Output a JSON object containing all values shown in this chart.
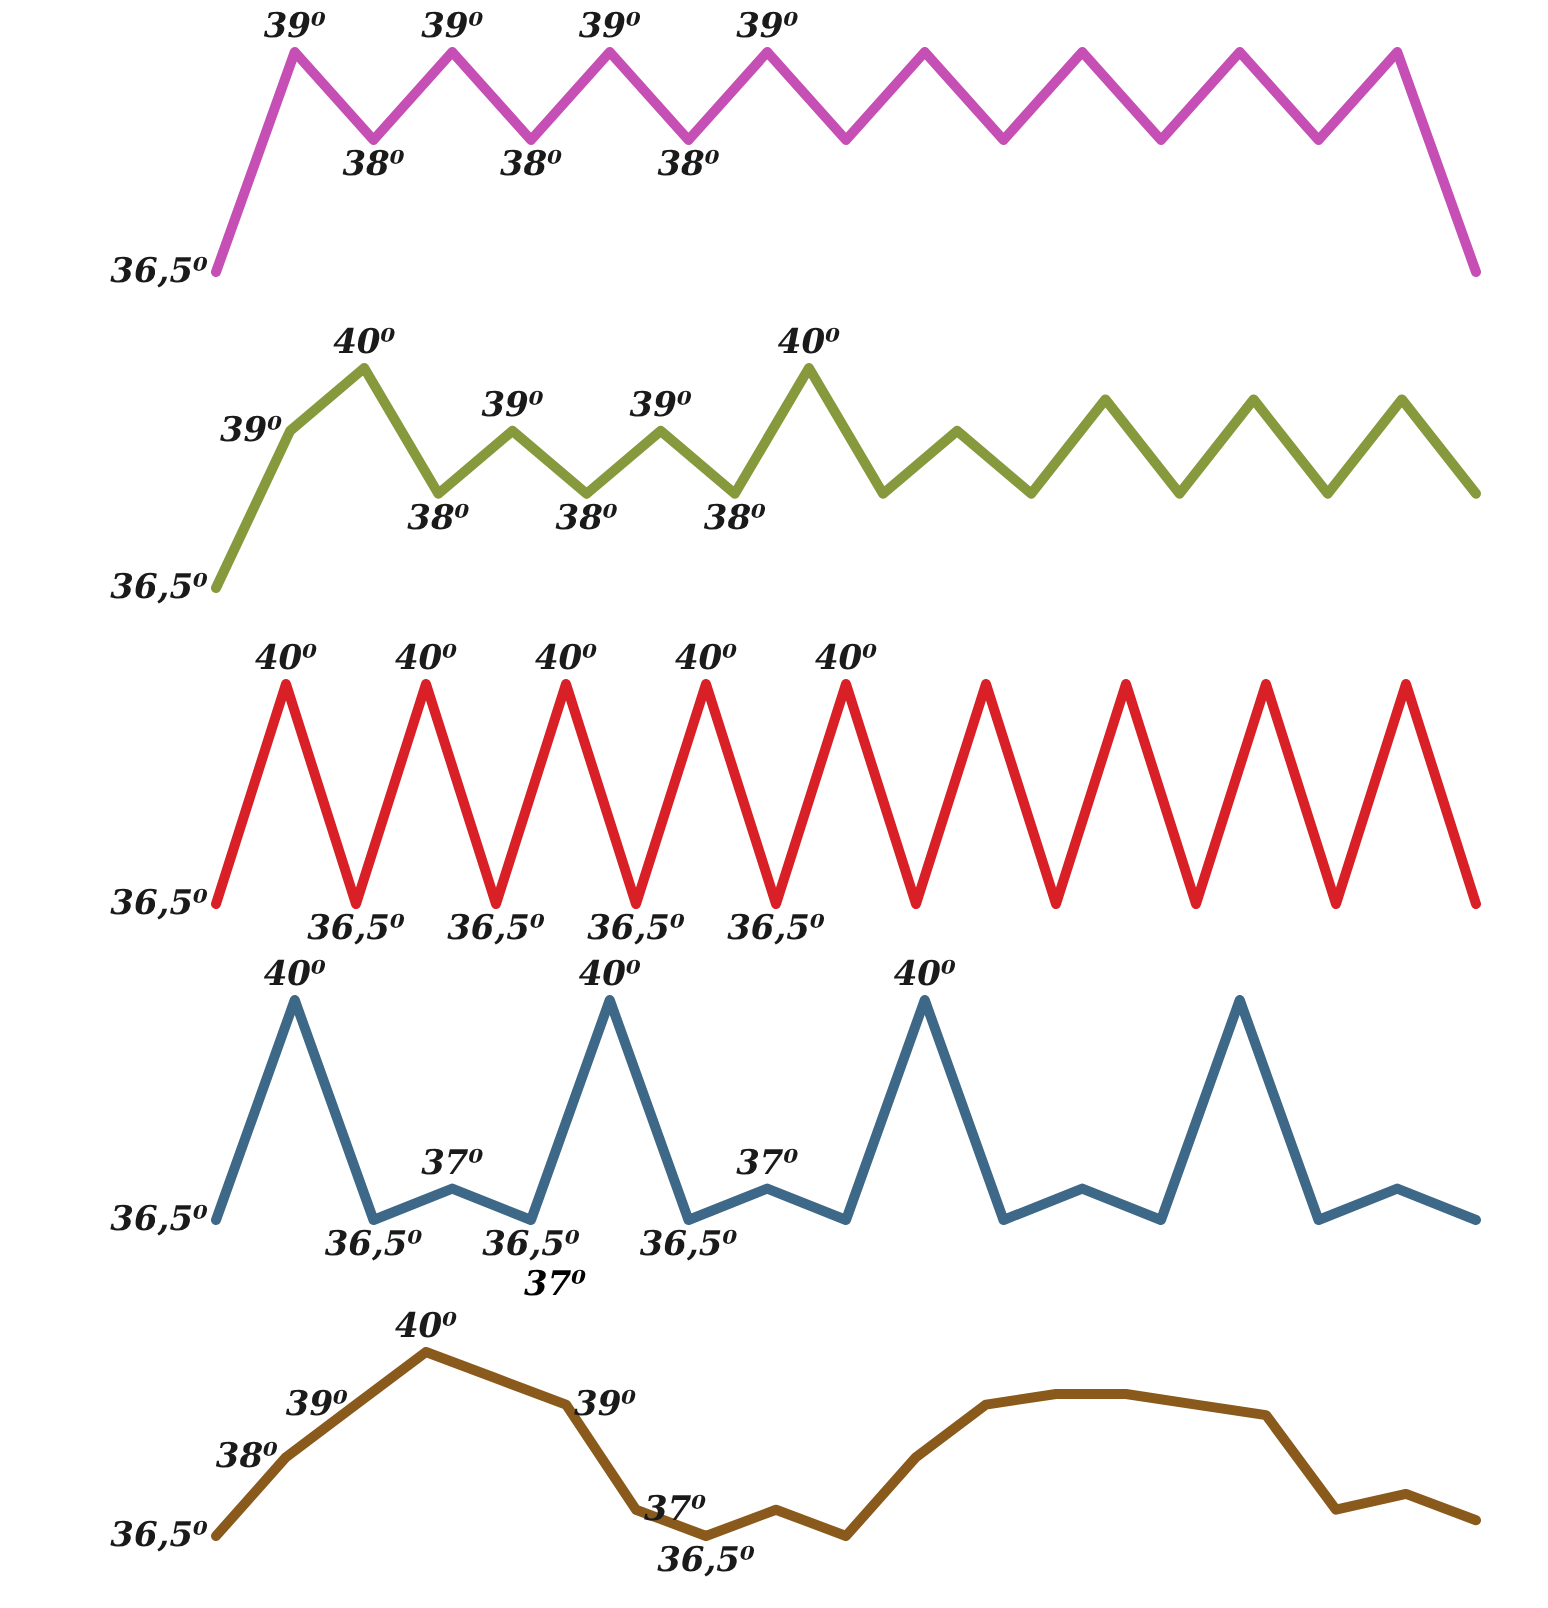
{
  "chart_data": [
    {
      "type": "line",
      "categories": [
        null,
        null,
        null,
        null,
        null,
        null,
        null,
        null,
        null,
        null,
        null,
        null,
        null,
        null,
        null,
        null,
        null
      ],
      "tick_labels": false,
      "marker": "none",
      "line_style": "solid",
      "series": [
        {
          "color": "#c64fb5",
          "values": [
            36.5,
            39,
            38,
            39,
            38,
            39,
            38,
            39,
            38,
            39,
            38,
            39,
            38,
            39,
            38,
            39,
            36.5
          ],
          "value_labels": [
            "36,5⁰",
            "39⁰",
            "38⁰",
            "39⁰",
            "38⁰",
            "39⁰",
            "38⁰",
            "39⁰",
            null,
            null,
            null,
            null,
            null,
            null,
            null,
            null,
            null
          ]
        }
      ]
    },
    {
      "type": "line",
      "categories": [
        null,
        null,
        null,
        null,
        null,
        null,
        null,
        null,
        null,
        null,
        null,
        null,
        null,
        null,
        null,
        null,
        null,
        null
      ],
      "tick_labels": false,
      "marker": "none",
      "line_style": "solid",
      "series": [
        {
          "color": "#86993c",
          "values": [
            36.5,
            39,
            40,
            38,
            39,
            38,
            39,
            38,
            40,
            38,
            39,
            38,
            39.5,
            38,
            39.5,
            38,
            39.5,
            38
          ],
          "value_labels": [
            "36,5⁰",
            "39⁰",
            "40⁰",
            "38⁰",
            "39⁰",
            "38⁰",
            "39⁰",
            "38⁰",
            "40⁰",
            null,
            null,
            null,
            null,
            null,
            null,
            null,
            null,
            null
          ]
        }
      ]
    },
    {
      "type": "line",
      "categories": [
        null,
        null,
        null,
        null,
        null,
        null,
        null,
        null,
        null,
        null,
        null,
        null,
        null,
        null,
        null,
        null,
        null,
        null,
        null
      ],
      "tick_labels": false,
      "marker": "none",
      "line_style": "solid",
      "series": [
        {
          "color": "#d92027",
          "values": [
            36.5,
            40,
            36.5,
            40,
            36.5,
            40,
            36.5,
            40,
            36.5,
            40,
            36.5,
            40,
            36.5,
            40,
            36.5,
            40,
            36.5,
            40,
            36.5
          ],
          "value_labels": [
            "36,5⁰",
            "40⁰",
            "36,5⁰",
            "40⁰",
            "36,5⁰",
            "40⁰",
            "36,5⁰",
            "40⁰",
            "36,5⁰",
            "40⁰",
            null,
            null,
            null,
            null,
            null,
            null,
            null,
            null,
            null
          ]
        }
      ]
    },
    {
      "type": "line",
      "categories": [
        null,
        null,
        null,
        null,
        null,
        null,
        null,
        null,
        null,
        null,
        null,
        null,
        null,
        null,
        null,
        null,
        null
      ],
      "tick_labels": false,
      "marker": "none",
      "line_style": "solid",
      "series": [
        {
          "color": "#3e6888",
          "values": [
            36.5,
            40,
            36.5,
            37,
            36.5,
            40,
            36.5,
            37,
            36.5,
            40,
            36.5,
            37,
            36.5,
            40,
            36.5,
            37,
            36.5
          ],
          "value_labels": [
            "36,5⁰",
            "40⁰",
            "36,5⁰",
            "37⁰",
            "36,5⁰",
            "40⁰",
            "36,5⁰",
            "37⁰",
            null,
            "40⁰",
            null,
            null,
            null,
            null,
            null,
            null,
            null
          ]
        }
      ]
    },
    {
      "type": "line",
      "categories": [
        null,
        null,
        null,
        null,
        null,
        null,
        null,
        null,
        null,
        null,
        null,
        null,
        null,
        null,
        null,
        null,
        null,
        null,
        null
      ],
      "tick_labels": false,
      "marker": "none",
      "line_style": "solid",
      "annotations": [
        "37⁰"
      ],
      "series": [
        {
          "color": "#8a5a1c",
          "values": [
            36.5,
            38,
            39,
            40,
            39.5,
            39,
            37,
            36.5,
            37,
            36.5,
            38,
            39,
            39.2,
            39.2,
            39,
            38.8,
            37,
            37.3,
            36.8
          ],
          "value_labels": [
            "36,5⁰",
            "38⁰",
            "39⁰",
            "40⁰",
            null,
            "39⁰",
            "37⁰",
            "36,5⁰",
            null,
            null,
            null,
            null,
            null,
            null,
            null,
            null,
            null,
            null,
            null
          ]
        }
      ]
    }
  ]
}
